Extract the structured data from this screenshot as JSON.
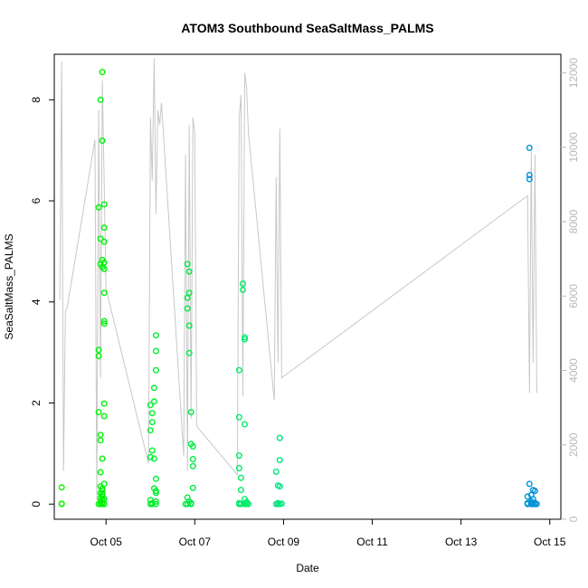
{
  "chart_data": {
    "type": "scatter",
    "title": "ATOM3 Southbound SeaSaltMass_PALMS",
    "xlabel": "Date",
    "ylabel": "SeaSaltMass_PALMS",
    "x_ticks": [
      "Oct 05",
      "Oct 07",
      "Oct 09",
      "Oct 11",
      "Oct 13",
      "Oct 15"
    ],
    "y_ticks": [
      "0",
      "2",
      "4",
      "6",
      "8"
    ],
    "y2_ticks": [
      "0",
      "2000",
      "4000",
      "6000",
      "8000",
      "10000",
      "12000"
    ],
    "xlim": [
      "2017-10-03 20:00",
      "2017-10-15 06:00"
    ],
    "ylim": [
      -0.3,
      8.9
    ],
    "y2lim": [
      0,
      12500
    ],
    "grid": false,
    "legend": "none",
    "series": [
      {
        "role": "points (left axis)",
        "x": [
          "2017-10-04 00:00",
          "2017-10-04 00:00",
          "2017-10-04 00:00",
          "2017-10-04 20:00",
          "2017-10-04 20:00",
          "2017-10-04 20:00",
          "2017-10-04 20:00",
          "2017-10-04 20:00",
          "2017-10-04 21:00",
          "2017-10-04 21:00",
          "2017-10-04 21:00",
          "2017-10-04 21:00",
          "2017-10-04 21:00",
          "2017-10-04 21:00",
          "2017-10-04 21:00",
          "2017-10-04 21:00",
          "2017-10-04 21:00",
          "2017-10-04 21:00",
          "2017-10-04 21:00",
          "2017-10-04 22:00",
          "2017-10-04 22:00",
          "2017-10-04 22:00",
          "2017-10-04 22:00",
          "2017-10-04 22:00",
          "2017-10-04 22:00",
          "2017-10-04 22:00",
          "2017-10-04 22:00",
          "2017-10-04 22:00",
          "2017-10-04 22:00",
          "2017-10-04 22:00",
          "2017-10-04 22:00",
          "2017-10-04 23:00",
          "2017-10-04 23:00",
          "2017-10-04 23:00",
          "2017-10-04 23:00",
          "2017-10-04 23:00",
          "2017-10-04 23:00",
          "2017-10-04 23:00",
          "2017-10-04 23:00",
          "2017-10-04 23:00",
          "2017-10-04 23:00",
          "2017-10-04 23:00",
          "2017-10-04 23:00",
          "2017-10-04 23:00",
          "2017-10-06 00:00",
          "2017-10-06 00:00",
          "2017-10-06 00:00",
          "2017-10-06 00:00",
          "2017-10-06 00:00",
          "2017-10-06 01:00",
          "2017-10-06 01:00",
          "2017-10-06 01:00",
          "2017-10-06 01:00",
          "2017-10-06 01:00",
          "2017-10-06 02:00",
          "2017-10-06 02:00",
          "2017-10-06 02:00",
          "2017-10-06 02:00",
          "2017-10-06 03:00",
          "2017-10-06 03:00",
          "2017-10-06 03:00",
          "2017-10-06 03:00",
          "2017-10-06 03:00",
          "2017-10-06 03:00",
          "2017-10-06 03:00",
          "2017-10-06 03:00",
          "2017-10-06 19:00",
          "2017-10-06 20:00",
          "2017-10-06 20:00",
          "2017-10-06 20:00",
          "2017-10-06 20:00",
          "2017-10-06 20:00",
          "2017-10-06 21:00",
          "2017-10-06 21:00",
          "2017-10-06 21:00",
          "2017-10-06 21:00",
          "2017-10-06 21:00",
          "2017-10-06 22:00",
          "2017-10-06 22:00",
          "2017-10-06 22:00",
          "2017-10-06 22:00",
          "2017-10-06 23:00",
          "2017-10-06 23:00",
          "2017-10-06 23:00",
          "2017-10-06 23:00",
          "2017-10-08 00:00",
          "2017-10-08 00:00",
          "2017-10-08 00:00",
          "2017-10-08 00:00",
          "2017-10-08 00:00",
          "2017-10-08 00:00",
          "2017-10-08 01:00",
          "2017-10-08 01:00",
          "2017-10-08 01:00",
          "2017-10-08 02:00",
          "2017-10-08 02:00",
          "2017-10-08 03:00",
          "2017-10-08 03:00",
          "2017-10-08 03:00",
          "2017-10-08 03:00",
          "2017-10-08 03:00",
          "2017-10-08 04:00",
          "2017-10-08 04:00",
          "2017-10-08 04:00",
          "2017-10-08 05:00",
          "2017-10-08 20:00",
          "2017-10-08 20:00",
          "2017-10-08 21:00",
          "2017-10-08 21:00",
          "2017-10-08 21:00",
          "2017-10-08 22:00",
          "2017-10-08 22:00",
          "2017-10-08 22:00",
          "2017-10-08 22:00",
          "2017-10-08 23:00",
          "2017-10-14 12:00",
          "2017-10-14 12:00",
          "2017-10-14 12:00",
          "2017-10-14 13:00",
          "2017-10-14 13:00",
          "2017-10-14 13:00",
          "2017-10-14 13:00",
          "2017-10-14 14:00",
          "2017-10-14 14:00",
          "2017-10-14 14:00",
          "2017-10-14 14:00",
          "2017-10-14 14:00",
          "2017-10-14 15:00",
          "2017-10-14 15:00",
          "2017-10-14 15:00",
          "2017-10-14 16:00",
          "2017-10-14 16:00",
          "2017-10-14 16:00",
          "2017-10-14 17:00"
        ],
        "values": [
          0.33,
          0.0,
          0.01,
          0.0,
          1.82,
          3.05,
          2.93,
          5.87,
          8.0,
          5.25,
          4.75,
          1.37,
          1.26,
          0.63,
          0.35,
          0.22,
          0.12,
          0.05,
          0.0,
          8.55,
          7.19,
          4.83,
          4.69,
          0.9,
          0.31,
          0.27,
          0.2,
          0.15,
          0.1,
          0.02,
          0.0,
          5.93,
          5.47,
          5.19,
          4.78,
          4.65,
          4.18,
          3.62,
          3.57,
          1.99,
          1.74,
          0.4,
          0.1,
          0.0,
          0.08,
          0.0,
          1.96,
          1.46,
          0.93,
          1.8,
          1.62,
          1.06,
          0.02,
          0.0,
          2.3,
          2.03,
          0.9,
          0.31,
          3.34,
          3.03,
          2.65,
          0.5,
          0.26,
          0.22,
          0.05,
          0.0,
          0.0,
          0.13,
          0.0,
          4.75,
          4.08,
          3.87,
          4.6,
          4.18,
          3.53,
          2.99,
          0.05,
          1.82,
          1.19,
          0.02,
          0.0,
          1.14,
          0.89,
          0.75,
          0.32,
          2.65,
          1.72,
          0.96,
          0.71,
          0.0,
          0.02,
          0.52,
          0.28,
          0.0,
          4.24,
          4.36,
          3.3,
          3.26,
          1.58,
          0.1,
          0.0,
          0.04,
          0.0,
          0.01,
          0.0,
          0.64,
          0.0,
          0.37,
          0.02,
          0.0,
          1.31,
          0.87,
          0.35,
          0.0,
          0.01,
          0.02,
          0.0,
          0.15,
          7.05,
          6.51,
          6.43,
          0.4,
          0.02,
          0.0,
          0.18,
          0.05,
          0.0,
          0.28,
          0.1,
          0.0,
          0.26,
          0.0,
          0.02,
          0.0
        ]
      },
      {
        "role": "line (right axis)",
        "x": [
          "2017-10-03 23:00",
          "2017-10-04 00:00",
          "2017-10-04 01:00",
          "2017-10-04 02:00",
          "2017-10-04 03:00",
          "2017-10-04 18:00",
          "2017-10-04 19:00",
          "2017-10-04 20:00",
          "2017-10-04 21:00",
          "2017-10-04 22:00",
          "2017-10-04 23:00",
          "2017-10-05 00:00",
          "2017-10-05 23:00",
          "2017-10-06 00:00",
          "2017-10-06 01:00",
          "2017-10-06 02:00",
          "2017-10-06 03:00",
          "2017-10-06 04:00",
          "2017-10-06 05:00",
          "2017-10-06 06:00",
          "2017-10-06 18:00",
          "2017-10-06 19:00",
          "2017-10-06 20:00",
          "2017-10-06 21:00",
          "2017-10-06 22:00",
          "2017-10-06 23:00",
          "2017-10-07 00:00",
          "2017-10-07 01:00",
          "2017-10-07 23:00",
          "2017-10-08 00:00",
          "2017-10-08 01:00",
          "2017-10-08 02:00",
          "2017-10-08 03:00",
          "2017-10-08 04:00",
          "2017-10-08 05:00",
          "2017-10-08 19:00",
          "2017-10-08 20:00",
          "2017-10-08 21:00",
          "2017-10-08 22:00",
          "2017-10-08 23:00",
          "2017-10-14 12:00",
          "2017-10-14 13:00",
          "2017-10-14 14:00",
          "2017-10-14 15:00",
          "2017-10-14 16:00",
          "2017-10-14 17:00"
        ],
        "values": [
          5900,
          12300,
          1300,
          5600,
          5700,
          10200,
          500,
          11000,
          3800,
          11800,
          9000,
          6200,
          1500,
          10800,
          9100,
          12400,
          8200,
          11000,
          10600,
          11200,
          1700,
          9800,
          1300,
          10600,
          2700,
          10800,
          10400,
          2500,
          1200,
          10800,
          11400,
          3300,
          12000,
          11600,
          10400,
          3200,
          9200,
          4200,
          10500,
          3800,
          8700,
          3400,
          9900,
          4200,
          9800,
          3400
        ]
      }
    ]
  }
}
